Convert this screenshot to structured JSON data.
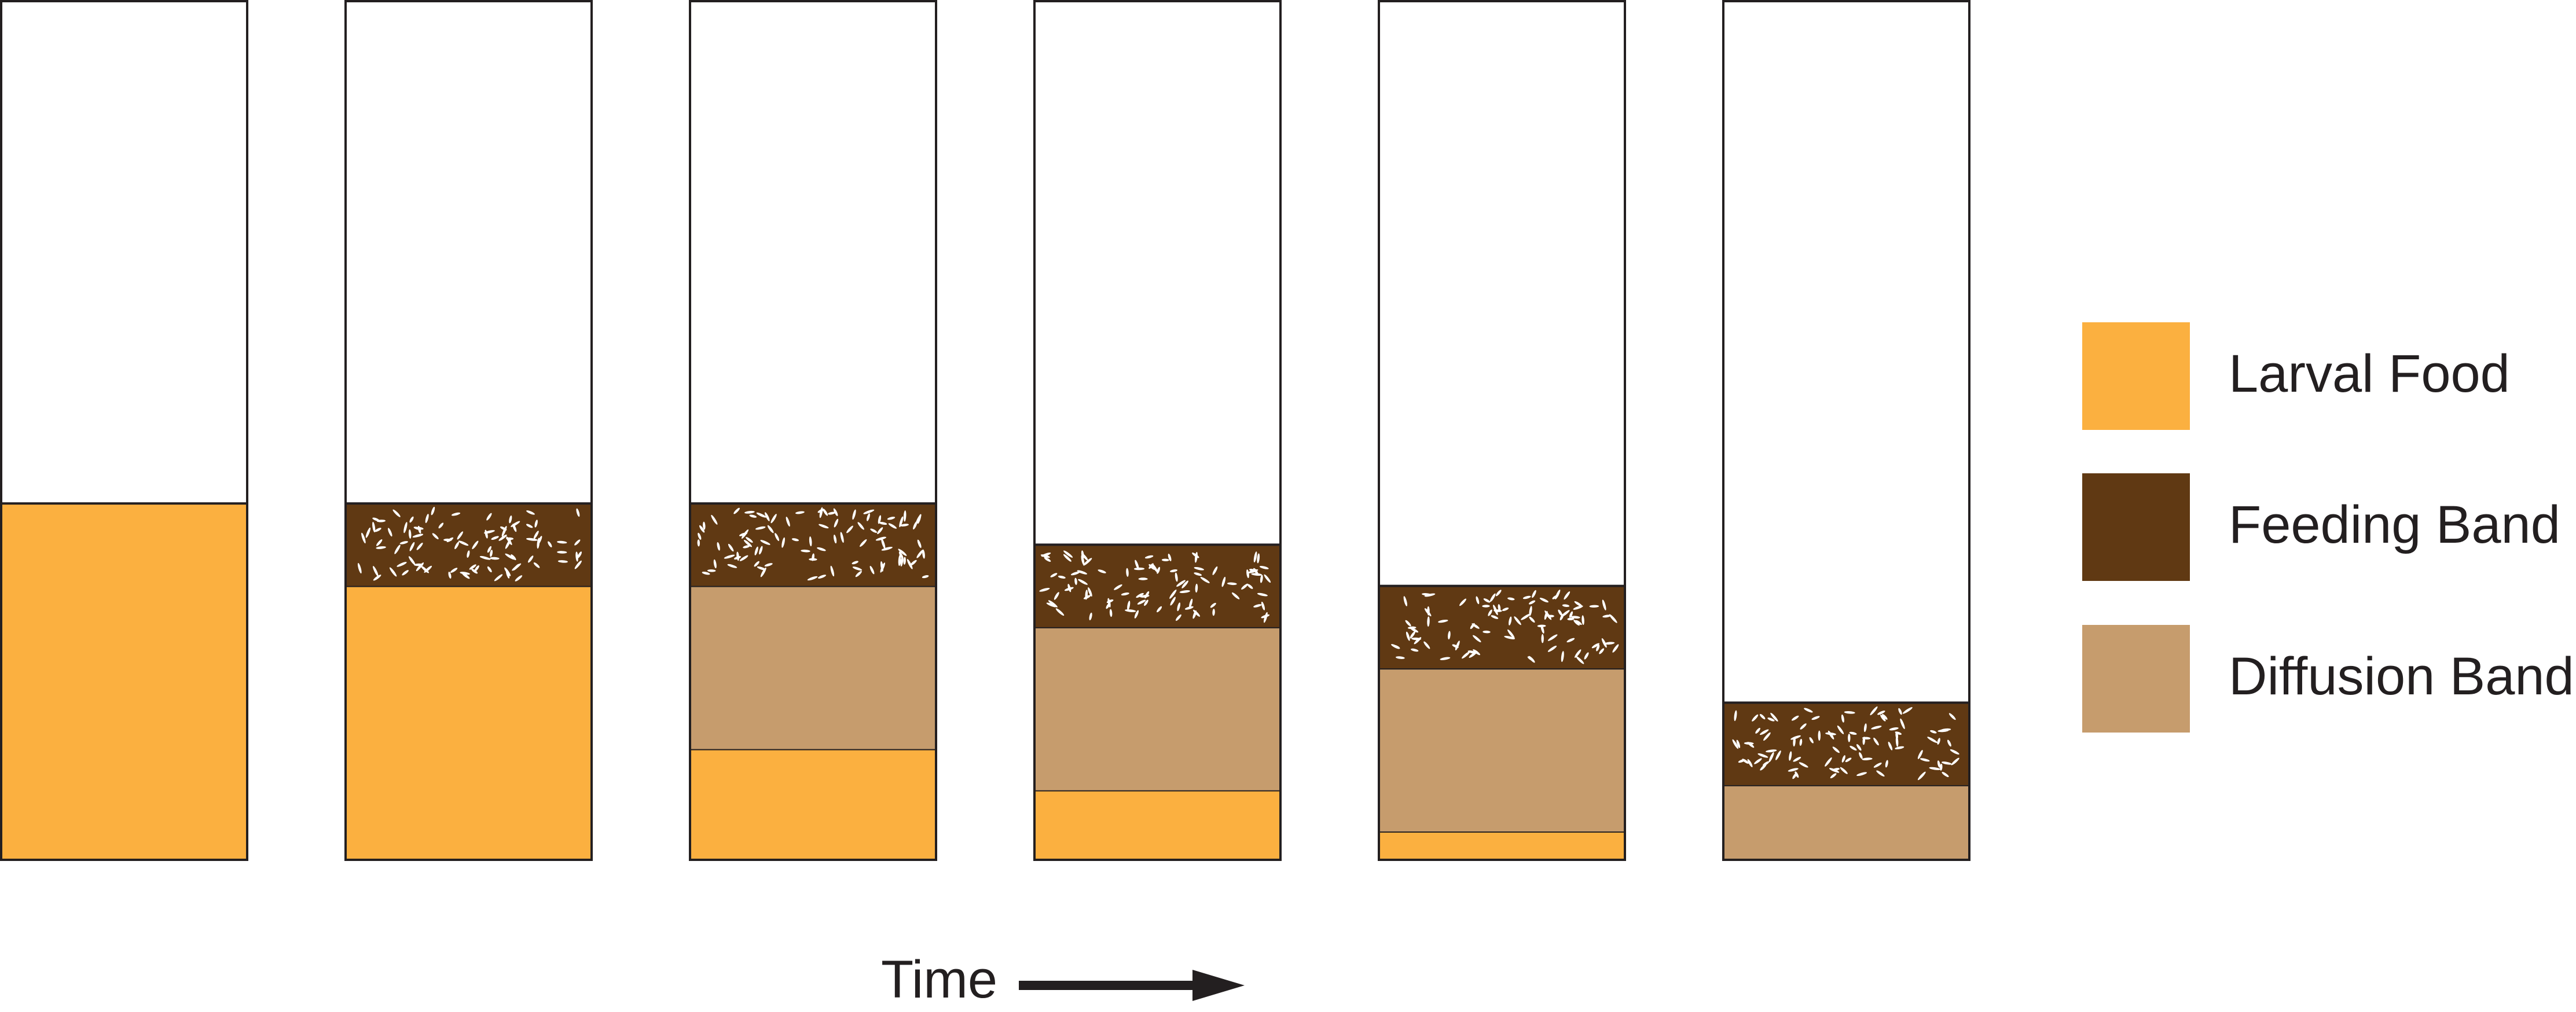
{
  "colors": {
    "larval_food": "#fbb040",
    "feeding_band": "#603913",
    "diffusion_band": "#c69c6d",
    "tube_empty": "#ffffff",
    "outline": "#231f20",
    "particles": "#ffffff"
  },
  "legend": {
    "items": [
      {
        "label": "Larval Food",
        "color_key": "larval_food"
      },
      {
        "label": "Feeding Band",
        "color_key": "feeding_band"
      },
      {
        "label": "Diffusion Band",
        "color_key": "diffusion_band"
      }
    ]
  },
  "axis": {
    "label": "Time",
    "arrow_icon": "right-arrow-icon"
  },
  "tubes": [
    {
      "stage": 1,
      "layers": [
        {
          "type": "larval_food",
          "fraction": 0.415
        }
      ]
    },
    {
      "stage": 2,
      "layers": [
        {
          "type": "larval_food",
          "fraction": 0.319
        },
        {
          "type": "feeding_band",
          "fraction": 0.096
        }
      ]
    },
    {
      "stage": 3,
      "layers": [
        {
          "type": "larval_food",
          "fraction": 0.129
        },
        {
          "type": "diffusion_band",
          "fraction": 0.19
        },
        {
          "type": "feeding_band",
          "fraction": 0.096
        }
      ]
    },
    {
      "stage": 4,
      "layers": [
        {
          "type": "larval_food",
          "fraction": 0.081
        },
        {
          "type": "diffusion_band",
          "fraction": 0.19
        },
        {
          "type": "feeding_band",
          "fraction": 0.096
        }
      ]
    },
    {
      "stage": 5,
      "layers": [
        {
          "type": "larval_food",
          "fraction": 0.033
        },
        {
          "type": "diffusion_band",
          "fraction": 0.19
        },
        {
          "type": "feeding_band",
          "fraction": 0.096
        }
      ]
    },
    {
      "stage": 6,
      "layers": [
        {
          "type": "diffusion_band",
          "fraction": 0.087
        },
        {
          "type": "feeding_band",
          "fraction": 0.096
        }
      ]
    }
  ]
}
